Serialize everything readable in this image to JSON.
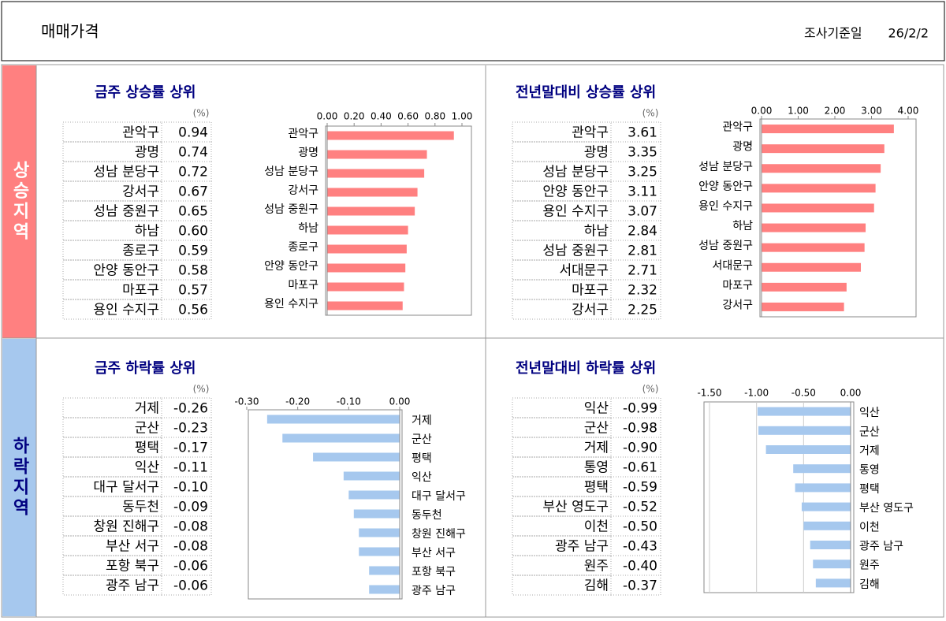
{
  "header": {
    "title": "매매가격",
    "date_label": "조사기준일",
    "date": "26/2/2"
  },
  "sections": [
    "상승지역",
    "하락지역"
  ],
  "chart_data": [
    {
      "type": "bar",
      "title": "금주 상승률 상위",
      "unit": "(%)",
      "color": "#ff8080",
      "grid": false,
      "categories": [
        "관악구",
        "광명",
        "성남 분당구",
        "강서구",
        "성남 중원구",
        "하남",
        "종로구",
        "안양 동안구",
        "마포구",
        "용인 수지구"
      ],
      "values": [
        0.94,
        0.74,
        0.72,
        0.67,
        0.65,
        0.6,
        0.59,
        0.58,
        0.57,
        0.56
      ],
      "value_labels": [
        "0.94",
        "0.74",
        "0.72",
        "0.67",
        "0.65",
        "0.60",
        "0.59",
        "0.58",
        "0.57",
        "0.56"
      ],
      "xlim": [
        0,
        1.0
      ],
      "xticks": [
        {
          "value": 0,
          "label": "0.00"
        },
        {
          "value": 0.2,
          "label": "0.20"
        },
        {
          "value": 0.4,
          "label": "0.40"
        },
        {
          "value": 0.6,
          "label": "0.60"
        },
        {
          "value": 0.8,
          "label": "0.80"
        },
        {
          "value": 1.0,
          "label": "1.00"
        }
      ]
    },
    {
      "type": "bar",
      "title": "전년말대비 상승률 상위",
      "unit": "(%)",
      "color": "#ff8080",
      "grid": false,
      "categories": [
        "관악구",
        "광명",
        "성남 분당구",
        "안양 동안구",
        "용인 수지구",
        "하남",
        "성남 중원구",
        "서대문구",
        "마포구",
        "강서구"
      ],
      "values": [
        3.61,
        3.35,
        3.25,
        3.11,
        3.07,
        2.84,
        2.81,
        2.71,
        2.32,
        2.25
      ],
      "value_labels": [
        "3.61",
        "3.35",
        "3.25",
        "3.11",
        "3.07",
        "2.84",
        "2.81",
        "2.71",
        "2.32",
        "2.25"
      ],
      "xlim": [
        0,
        4.0
      ],
      "xticks": [
        {
          "value": 0,
          "label": "0.00"
        },
        {
          "value": 1,
          "label": "1.00"
        },
        {
          "value": 2,
          "label": "2.00"
        },
        {
          "value": 3,
          "label": "3.00"
        },
        {
          "value": 4,
          "label": "4.00"
        }
      ]
    },
    {
      "type": "bar",
      "title": "금주 하락률 상위",
      "unit": "(%)",
      "color": "#a6c8ee",
      "grid": false,
      "categories": [
        "거제",
        "군산",
        "평택",
        "익산",
        "대구 달서구",
        "동두천",
        "창원 진해구",
        "부산 서구",
        "포항 북구",
        "광주 남구"
      ],
      "values": [
        -0.26,
        -0.23,
        -0.17,
        -0.11,
        -0.1,
        -0.09,
        -0.08,
        -0.08,
        -0.06,
        -0.06
      ],
      "value_labels": [
        "-0.26",
        "-0.23",
        "-0.17",
        "-0.11",
        "-0.10",
        "-0.09",
        "-0.08",
        "-0.08",
        "-0.06",
        "-0.06"
      ],
      "xlim": [
        -0.3,
        0
      ],
      "xticks": [
        {
          "value": -0.3,
          "label": "-0.30"
        },
        {
          "value": -0.2,
          "label": "-0.20"
        },
        {
          "value": -0.1,
          "label": "-0.10"
        },
        {
          "value": 0,
          "label": "0.00"
        }
      ]
    },
    {
      "type": "bar",
      "title": "전년말대비 하락률 상위",
      "unit": "(%)",
      "color": "#a6c8ee",
      "grid": true,
      "categories": [
        "익산",
        "군산",
        "거제",
        "통영",
        "평택",
        "부산 영도구",
        "이천",
        "광주 남구",
        "원주",
        "김해"
      ],
      "values": [
        -0.99,
        -0.98,
        -0.9,
        -0.61,
        -0.59,
        -0.52,
        -0.5,
        -0.43,
        -0.4,
        -0.37
      ],
      "value_labels": [
        "-0.99",
        "-0.98",
        "-0.90",
        "-0.61",
        "-0.59",
        "-0.52",
        "-0.50",
        "-0.43",
        "-0.40",
        "-0.37"
      ],
      "xlim": [
        -1.5,
        0
      ],
      "xticks": [
        {
          "value": -1.5,
          "label": "-1.50"
        },
        {
          "value": -1.0,
          "label": "-1.00"
        },
        {
          "value": -0.5,
          "label": "-0.50"
        },
        {
          "value": 0,
          "label": "0.00"
        }
      ]
    }
  ]
}
